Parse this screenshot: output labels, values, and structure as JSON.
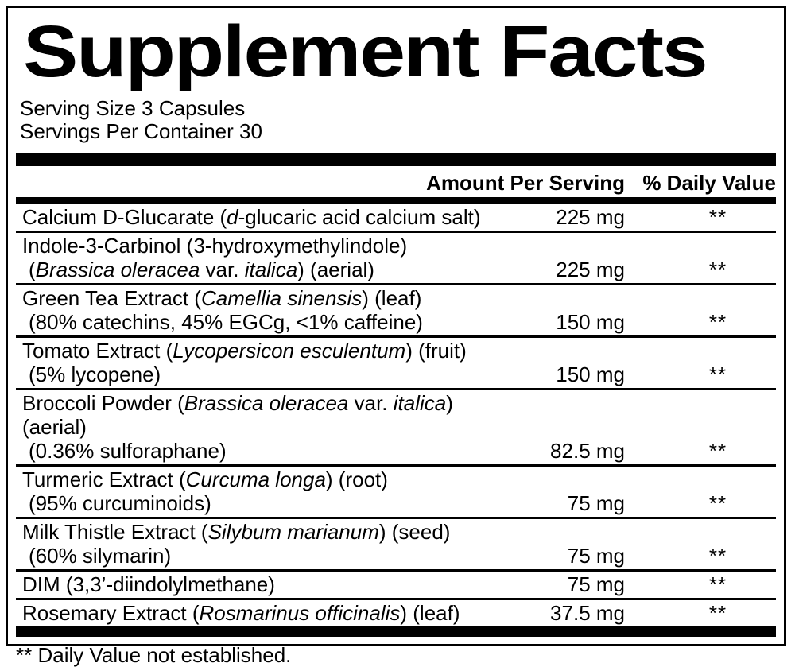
{
  "label": {
    "title": "Supplement Facts",
    "serving_size": "Serving Size 3 Capsules",
    "servings_per_container": "Servings Per Container 30",
    "columns": {
      "amount": "Amount Per Serving",
      "daily_value": "% Daily Value"
    },
    "rows": [
      {
        "line1": [
          {
            "t": "Calcium D-Glucarate ("
          },
          {
            "t": "d",
            "i": true
          },
          {
            "t": "-glucaric acid calcium salt)"
          }
        ],
        "line2": null,
        "amount": "225 mg",
        "daily_value": "**"
      },
      {
        "line1": [
          {
            "t": "Indole-3-Carbinol (3-hydroxymethylindole)"
          }
        ],
        "line2": [
          {
            "t": "("
          },
          {
            "t": "Brassica oleracea",
            "i": true
          },
          {
            "t": " var. "
          },
          {
            "t": "italica",
            "i": true
          },
          {
            "t": ") (aerial)"
          }
        ],
        "amount": "225 mg",
        "daily_value": "**"
      },
      {
        "line1": [
          {
            "t": "Green Tea Extract ("
          },
          {
            "t": "Camellia sinensis",
            "i": true
          },
          {
            "t": ") (leaf)"
          }
        ],
        "line2": [
          {
            "t": "(80% catechins, 45% EGCg, <1% caffeine)"
          }
        ],
        "amount": "150 mg",
        "daily_value": "**"
      },
      {
        "line1": [
          {
            "t": "Tomato Extract ("
          },
          {
            "t": "Lycopersicon esculentum",
            "i": true
          },
          {
            "t": ") (fruit)"
          }
        ],
        "line2": [
          {
            "t": "(5% lycopene)"
          }
        ],
        "amount": "150 mg",
        "daily_value": "**"
      },
      {
        "line1": [
          {
            "t": "Broccoli Powder ("
          },
          {
            "t": "Brassica oleracea",
            "i": true
          },
          {
            "t": " var. "
          },
          {
            "t": "italica",
            "i": true
          },
          {
            "t": ") (aerial)"
          }
        ],
        "line2": [
          {
            "t": "(0.36% sulforaphane)"
          }
        ],
        "amount": "82.5 mg",
        "daily_value": "**"
      },
      {
        "line1": [
          {
            "t": "Turmeric Extract ("
          },
          {
            "t": "Curcuma longa",
            "i": true
          },
          {
            "t": ") (root)"
          }
        ],
        "line2": [
          {
            "t": "(95% curcuminoids)"
          }
        ],
        "amount": "75 mg",
        "daily_value": "**"
      },
      {
        "line1": [
          {
            "t": "Milk Thistle Extract ("
          },
          {
            "t": "Silybum marianum",
            "i": true
          },
          {
            "t": ") (seed)"
          }
        ],
        "line2": [
          {
            "t": "(60% silymarin)"
          }
        ],
        "amount": "75 mg",
        "daily_value": "**"
      },
      {
        "line1": [
          {
            "t": "DIM (3,3’-diindolylmethane)"
          }
        ],
        "line2": null,
        "amount": "75 mg",
        "daily_value": "**"
      },
      {
        "line1": [
          {
            "t": "Rosemary Extract ("
          },
          {
            "t": "Rosmarinus officinalis",
            "i": true
          },
          {
            "t": ") (leaf)"
          }
        ],
        "line2": null,
        "amount": "37.5 mg",
        "daily_value": "**"
      }
    ],
    "footnote": "** Daily Value not established.",
    "colors": {
      "ink": "#000000",
      "paper": "#ffffff"
    }
  }
}
